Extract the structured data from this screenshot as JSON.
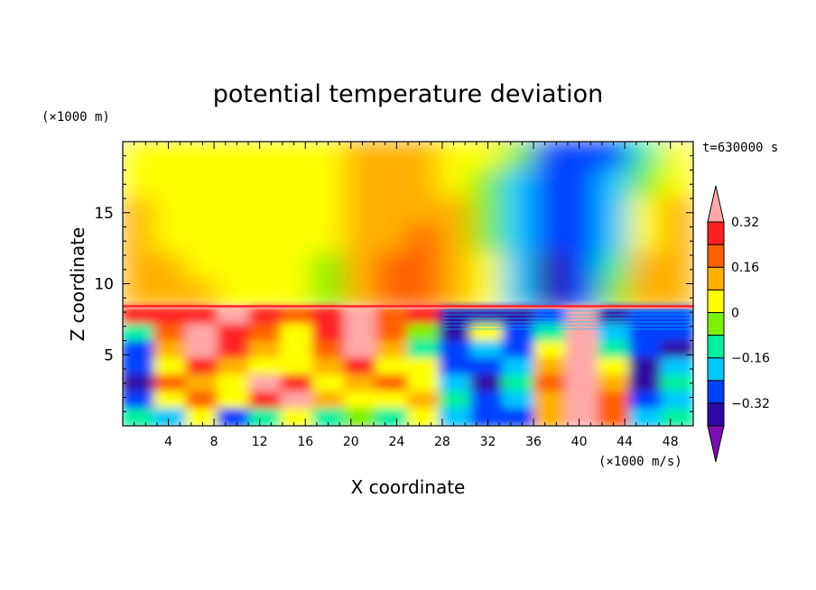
{
  "chart_data": {
    "type": "heatmap",
    "title": "potential temperature deviation",
    "xlabel": "X coordinate",
    "ylabel": "Z coordinate",
    "x_unit": "(×1000 m/s)",
    "y_unit": "(×1000 m)",
    "time_label": "t=630000 s",
    "xlim": [
      0,
      50
    ],
    "ylim": [
      0,
      20
    ],
    "x_ticks": [
      4,
      8,
      12,
      16,
      20,
      24,
      28,
      32,
      36,
      40,
      44,
      48
    ],
    "y_ticks": [
      5,
      10,
      15
    ],
    "colorbar": {
      "levels": [
        -0.4,
        -0.32,
        -0.24,
        -0.16,
        -0.08,
        0,
        0.08,
        0.16,
        0.24,
        0.32,
        0.4
      ],
      "labeled_ticks": [
        {
          "value": 0.32,
          "label": "0.32"
        },
        {
          "value": 0.16,
          "label": "0.16"
        },
        {
          "value": 0,
          "label": "0"
        },
        {
          "value": -0.16,
          "label": "−0.16"
        },
        {
          "value": -0.32,
          "label": "−0.32"
        }
      ],
      "colors": [
        "#7a0fb3",
        "#2d0aa3",
        "#0040ff",
        "#00c8ff",
        "#00f0a0",
        "#7cf000",
        "#ffff00",
        "#ffb000",
        "#ff6000",
        "#ff2020",
        "#ffa8a8"
      ]
    },
    "field": {
      "upper": [
        [
          0.04,
          0.04,
          0.04,
          0.04,
          0.04,
          0.04,
          0.04,
          0.12,
          0.12,
          0.12,
          0.05,
          0.05,
          -0.08,
          -0.25,
          -0.25,
          -0.25,
          -0.1,
          0.04
        ],
        [
          0.04,
          0.04,
          0.04,
          0.04,
          0.04,
          0.04,
          0.04,
          0.12,
          0.12,
          0.12,
          0.05,
          -0.05,
          -0.2,
          -0.3,
          -0.3,
          -0.2,
          -0.05,
          0.04
        ],
        [
          0.12,
          0.04,
          0.04,
          0.04,
          0.04,
          0.04,
          0.04,
          0.12,
          0.12,
          0.12,
          0.12,
          -0.05,
          -0.2,
          -0.3,
          -0.3,
          -0.2,
          0.05,
          0.12
        ],
        [
          0.12,
          0.04,
          0.04,
          0.04,
          0.04,
          0.04,
          0.04,
          0.12,
          0.12,
          0.2,
          0.12,
          -0.05,
          -0.2,
          -0.3,
          -0.25,
          -0.2,
          0.05,
          0.12
        ],
        [
          0.12,
          0.12,
          0.04,
          0.04,
          0.04,
          0.04,
          -0.05,
          0.12,
          0.2,
          0.2,
          0.12,
          0.05,
          -0.2,
          -0.35,
          -0.3,
          -0.1,
          0.12,
          0.12
        ],
        [
          0.12,
          0.12,
          0.12,
          0.04,
          0.04,
          0.04,
          -0.05,
          0.12,
          0.2,
          0.2,
          0.12,
          0.05,
          -0.2,
          -0.35,
          -0.3,
          -0.05,
          0.12,
          0.12
        ]
      ],
      "lower": [
        [
          0.3,
          0.3,
          0.3,
          0.38,
          0.3,
          0.2,
          0.3,
          0.38,
          0.2,
          0.3,
          -0.35,
          -0.35,
          -0.35,
          -0.3,
          0.38,
          -0.35,
          -0.3,
          -0.25
        ],
        [
          -0.1,
          0.2,
          0.38,
          0.3,
          0.2,
          0.05,
          0.3,
          0.38,
          0.2,
          -0.05,
          -0.35,
          0.0,
          -0.25,
          -0.1,
          0.38,
          -0.2,
          -0.3,
          -0.3
        ],
        [
          -0.25,
          0.1,
          0.38,
          0.25,
          0.1,
          0.0,
          0.2,
          0.38,
          0.1,
          -0.1,
          -0.3,
          -0.2,
          -0.3,
          0.0,
          0.38,
          -0.1,
          -0.3,
          -0.35
        ],
        [
          -0.3,
          0.05,
          0.3,
          0.1,
          0.0,
          0.05,
          0.1,
          0.3,
          0.05,
          0.0,
          -0.25,
          -0.3,
          -0.2,
          0.1,
          0.38,
          0.0,
          -0.35,
          -0.2
        ],
        [
          -0.35,
          0.2,
          0.1,
          0.0,
          0.38,
          0.3,
          0.0,
          0.1,
          0.2,
          0.05,
          -0.2,
          -0.35,
          -0.1,
          0.2,
          0.38,
          0.1,
          -0.35,
          -0.1
        ],
        [
          -0.25,
          0.0,
          0.2,
          0.05,
          0.3,
          0.38,
          0.1,
          0.0,
          0.0,
          0.1,
          -0.1,
          -0.3,
          -0.2,
          0.1,
          0.38,
          0.2,
          -0.3,
          -0.2
        ],
        [
          -0.1,
          -0.2,
          0.0,
          -0.25,
          -0.1,
          0.0,
          -0.1,
          -0.05,
          -0.1,
          0.0,
          -0.2,
          -0.25,
          -0.25,
          0.1,
          0.38,
          0.2,
          -0.2,
          -0.15
        ]
      ]
    }
  }
}
